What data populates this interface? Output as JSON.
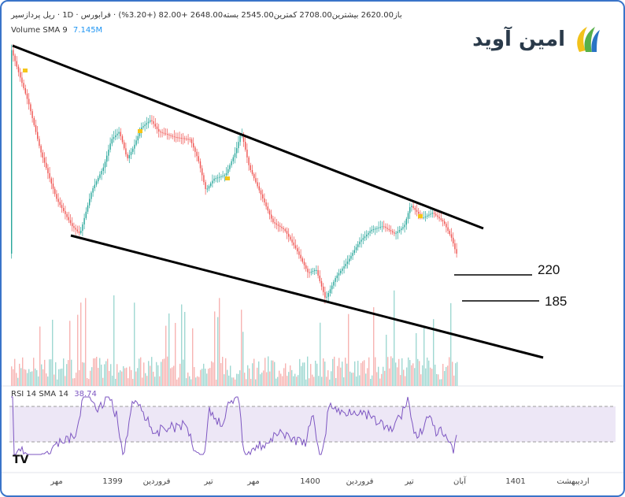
{
  "header": {
    "symbol": "ریل پردازسیر",
    "timeframe": "1D",
    "exchange": "فرابورس",
    "ohlc_text": "باز2620.00 بیشترین2708.00 کمترین2545.00 بسته2648.00 +82.00 (+3.20%)"
  },
  "volume_indicator": {
    "label": "Volume SMA 9",
    "value": "7.145M"
  },
  "rsi_indicator": {
    "label": "RSI 14 SMA 14",
    "value": "38.74"
  },
  "logo": {
    "text": "امین آوید",
    "icon": "brand-swoosh-icon"
  },
  "watermark": {
    "text": "TV",
    "icon": "tradingview-logo-icon"
  },
  "levels": [
    {
      "label": "220"
    },
    {
      "label": "185"
    }
  ],
  "chart_data": {
    "type": "candlestick",
    "x_ticks": [
      "مهر",
      "1399",
      "فروردین",
      "تیر",
      "مهر",
      "1400",
      "فروردین",
      "تیر",
      "آبان",
      "1401",
      "اردیبهشت"
    ],
    "trendlines": [
      "upper-resistance",
      "lower-support"
    ],
    "horizontal_levels": [
      "220",
      "185"
    ],
    "rsi_bands": [
      70,
      30
    ],
    "colors": {
      "up": "#26a69a",
      "down": "#ef5350",
      "rsi": "#7e57c2",
      "rsi_band": "#ede7f6",
      "lines": "#000000"
    }
  }
}
